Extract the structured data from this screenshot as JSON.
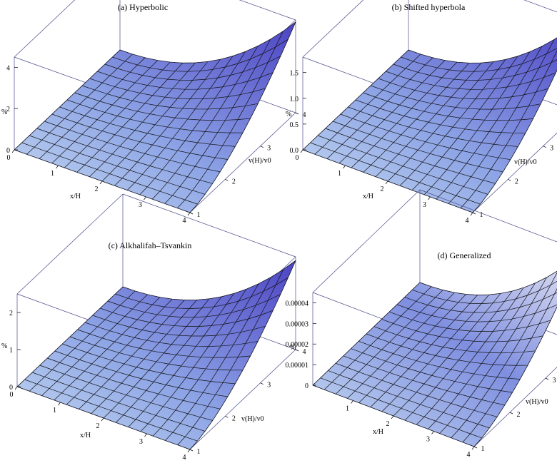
{
  "chart_data": [
    {
      "type": "surface",
      "title": "(a) Hyperbolic",
      "xlabel": "x/H",
      "ylabel": "v(H)/v0",
      "zlabel": "%",
      "x_ticks": [
        "0",
        "1",
        "2",
        "3",
        "4"
      ],
      "y_ticks": [
        "1",
        "2",
        "3",
        "4"
      ],
      "z_ticks": [
        "0",
        "2",
        "4"
      ],
      "xlim": [
        0,
        4
      ],
      "ylim": [
        1,
        4
      ],
      "zlim": [
        0,
        4.5
      ],
      "z_max": 4.4
    },
    {
      "type": "surface",
      "title": "(b) Shifted hyperbola",
      "xlabel": "x/H",
      "ylabel": "v(H)/v0",
      "zlabel": "%",
      "x_ticks": [
        "0",
        "1",
        "2",
        "3",
        "4"
      ],
      "y_ticks": [
        "1",
        "2",
        "3",
        "4"
      ],
      "z_ticks": [
        "0.0",
        "0.5",
        "1.0",
        "1.5"
      ],
      "xlim": [
        0,
        4
      ],
      "ylim": [
        1,
        4
      ],
      "zlim": [
        0,
        1.8
      ],
      "z_max": 1.75
    },
    {
      "type": "surface",
      "title": "(c) Alkhalifah–Tsvankin",
      "xlabel": "x/H",
      "ylabel": "v(H)/v0",
      "zlabel": "%",
      "x_ticks": [
        "0",
        "1",
        "2",
        "3",
        "4"
      ],
      "y_ticks": [
        "1",
        "2",
        "3",
        "4"
      ],
      "z_ticks": [
        "0",
        "1",
        "2"
      ],
      "xlim": [
        0,
        4
      ],
      "ylim": [
        1,
        4
      ],
      "zlim": [
        0,
        2.5
      ],
      "z_max": 2.4
    },
    {
      "type": "surface",
      "title": "(d) Generalized",
      "xlabel": "x/H",
      "ylabel": "v(H)/v0",
      "zlabel": "%",
      "x_ticks": [
        "1",
        "2",
        "3",
        "4"
      ],
      "y_ticks": [
        "1",
        "2",
        "3",
        "4"
      ],
      "z_ticks": [
        "0",
        "0.00001",
        "0.00002",
        "0.00003",
        "0.00004"
      ],
      "xlim": [
        0,
        4
      ],
      "ylim": [
        1,
        4
      ],
      "zlim": [
        0,
        4.5e-05
      ],
      "z_max": 4.4e-05
    }
  ]
}
